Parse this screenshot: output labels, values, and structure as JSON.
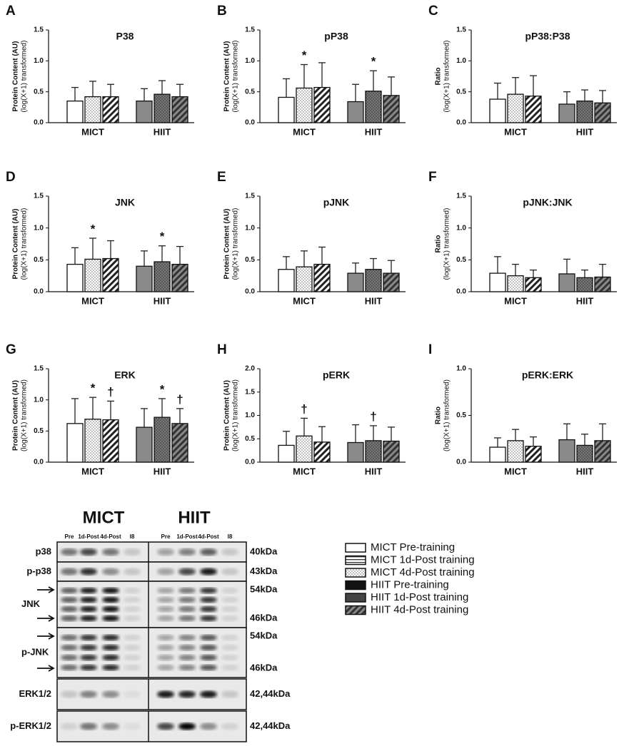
{
  "chart_data": [
    {
      "type": "bar",
      "panel": "A",
      "title": "P38",
      "ylabel": [
        "Protein Content (AU)",
        "(log(X+1) transformed)"
      ],
      "ylim": [
        0,
        1.5
      ],
      "yticks": [
        {
          "value": 0,
          "label": "0.0"
        },
        {
          "value": 0.5,
          "label": "0.5"
        },
        {
          "value": 1,
          "label": "1.0"
        },
        {
          "value": 1.5,
          "label": "1.5"
        }
      ],
      "groups": [
        {
          "name": "MICT",
          "values": [
            0.35,
            0.42,
            0.42
          ],
          "errors": [
            0.22,
            0.25,
            0.2
          ],
          "labels": [
            null,
            null,
            null
          ]
        },
        {
          "name": "HIIT",
          "values": [
            0.35,
            0.46,
            0.42
          ],
          "errors": [
            0.2,
            0.22,
            0.2
          ],
          "labels": [
            null,
            null,
            null
          ]
        }
      ]
    },
    {
      "type": "bar",
      "panel": "B",
      "title": "pP38",
      "ylabel": [
        "Protein Content (AU)",
        "(log(X+1) transformed)"
      ],
      "ylim": [
        0,
        1.5
      ],
      "yticks": [
        {
          "value": 0,
          "label": "0.0"
        },
        {
          "value": 0.5,
          "label": "0.5"
        },
        {
          "value": 1,
          "label": "1.0"
        },
        {
          "value": 1.5,
          "label": "1.5"
        }
      ],
      "groups": [
        {
          "name": "MICT",
          "values": [
            0.41,
            0.56,
            0.57
          ],
          "errors": [
            0.3,
            0.38,
            0.4
          ],
          "labels": [
            null,
            "*",
            null
          ]
        },
        {
          "name": "HIIT",
          "values": [
            0.34,
            0.51,
            0.44
          ],
          "errors": [
            0.28,
            0.33,
            0.3
          ],
          "labels": [
            null,
            "*",
            null
          ]
        }
      ]
    },
    {
      "type": "bar",
      "panel": "C",
      "title": "pP38:P38",
      "ylabel": [
        "Ratio",
        "(log(X+1) transformed)"
      ],
      "ylim": [
        0,
        1.5
      ],
      "yticks": [
        {
          "value": 0,
          "label": "0.0"
        },
        {
          "value": 0.5,
          "label": "0.5"
        },
        {
          "value": 1,
          "label": "1.0"
        },
        {
          "value": 1.5,
          "label": "1.5"
        }
      ],
      "groups": [
        {
          "name": "MICT",
          "values": [
            0.38,
            0.46,
            0.43
          ],
          "errors": [
            0.26,
            0.27,
            0.33
          ],
          "labels": [
            null,
            null,
            null
          ]
        },
        {
          "name": "HIIT",
          "values": [
            0.3,
            0.35,
            0.32
          ],
          "errors": [
            0.2,
            0.18,
            0.2
          ],
          "labels": [
            null,
            null,
            null
          ]
        }
      ]
    },
    {
      "type": "bar",
      "panel": "D",
      "title": "JNK",
      "ylabel": [
        "Protein Content (AU)",
        "(log(X+1) transformed)"
      ],
      "ylim": [
        0,
        1.5
      ],
      "yticks": [
        {
          "value": 0,
          "label": "0.0"
        },
        {
          "value": 0.5,
          "label": "0.5"
        },
        {
          "value": 1,
          "label": "1.0"
        },
        {
          "value": 1.5,
          "label": "1.5"
        }
      ],
      "groups": [
        {
          "name": "MICT",
          "values": [
            0.43,
            0.51,
            0.52
          ],
          "errors": [
            0.26,
            0.33,
            0.28
          ],
          "labels": [
            null,
            "*",
            null
          ]
        },
        {
          "name": "HIIT",
          "values": [
            0.4,
            0.47,
            0.43
          ],
          "errors": [
            0.24,
            0.25,
            0.28
          ],
          "labels": [
            null,
            "*",
            null
          ]
        }
      ]
    },
    {
      "type": "bar",
      "panel": "E",
      "title": "pJNK",
      "ylabel": [
        "Protein Content (AU)",
        "(log(X+1) transformed)"
      ],
      "ylim": [
        0,
        1.5
      ],
      "yticks": [
        {
          "value": 0,
          "label": "0.0"
        },
        {
          "value": 0.5,
          "label": "0.5"
        },
        {
          "value": 1,
          "label": "1.0"
        },
        {
          "value": 1.5,
          "label": "1.5"
        }
      ],
      "groups": [
        {
          "name": "MICT",
          "values": [
            0.35,
            0.39,
            0.43
          ],
          "errors": [
            0.2,
            0.25,
            0.27
          ],
          "labels": [
            null,
            null,
            null
          ]
        },
        {
          "name": "HIIT",
          "values": [
            0.29,
            0.35,
            0.29
          ],
          "errors": [
            0.16,
            0.17,
            0.2
          ],
          "labels": [
            null,
            null,
            null
          ]
        }
      ]
    },
    {
      "type": "bar",
      "panel": "F",
      "title": "pJNK:JNK",
      "ylabel": [
        "Ratio",
        "(log(X+1) transformed)"
      ],
      "ylim": [
        0,
        1.5
      ],
      "yticks": [
        {
          "value": 0,
          "label": "0.0"
        },
        {
          "value": 0.5,
          "label": "0.5"
        },
        {
          "value": 1,
          "label": "1.0"
        },
        {
          "value": 1.5,
          "label": "1.5"
        }
      ],
      "groups": [
        {
          "name": "MICT",
          "values": [
            0.29,
            0.25,
            0.22
          ],
          "errors": [
            0.26,
            0.18,
            0.12
          ],
          "labels": [
            null,
            null,
            null
          ]
        },
        {
          "name": "HIIT",
          "values": [
            0.28,
            0.22,
            0.23
          ],
          "errors": [
            0.23,
            0.12,
            0.2
          ],
          "labels": [
            null,
            null,
            null
          ]
        }
      ]
    },
    {
      "type": "bar",
      "panel": "G",
      "title": "ERK",
      "ylabel": [
        "Protein Content (AU)",
        "(log(X+1) transformed)"
      ],
      "ylim": [
        0,
        1.5
      ],
      "yticks": [
        {
          "value": 0,
          "label": "0.0"
        },
        {
          "value": 0.5,
          "label": "0.5"
        },
        {
          "value": 1,
          "label": "1.0"
        },
        {
          "value": 1.5,
          "label": "1.5"
        }
      ],
      "groups": [
        {
          "name": "MICT",
          "values": [
            0.62,
            0.69,
            0.68
          ],
          "errors": [
            0.4,
            0.35,
            0.3
          ],
          "labels": [
            null,
            "*",
            "†"
          ]
        },
        {
          "name": "HIIT",
          "values": [
            0.56,
            0.72,
            0.62
          ],
          "errors": [
            0.3,
            0.3,
            0.24
          ],
          "labels": [
            null,
            "*",
            "†"
          ]
        }
      ]
    },
    {
      "type": "bar",
      "panel": "H",
      "title": "pERK",
      "ylabel": [
        "Protein Content (AU)",
        "(log(X+1) transformed)"
      ],
      "ylim": [
        0,
        2
      ],
      "yticks": [
        {
          "value": 0,
          "label": "0.0"
        },
        {
          "value": 0.5,
          "label": "0.5"
        },
        {
          "value": 1,
          "label": "1.0"
        },
        {
          "value": 1.5,
          "label": "1.5"
        },
        {
          "value": 2,
          "label": "2.0"
        }
      ],
      "groups": [
        {
          "name": "MICT",
          "values": [
            0.36,
            0.56,
            0.43
          ],
          "errors": [
            0.3,
            0.38,
            0.33
          ],
          "labels": [
            null,
            "†",
            null
          ]
        },
        {
          "name": "HIIT",
          "values": [
            0.42,
            0.46,
            0.45
          ],
          "errors": [
            0.38,
            0.32,
            0.3
          ],
          "labels": [
            null,
            "†",
            null
          ]
        }
      ]
    },
    {
      "type": "bar",
      "panel": "I",
      "title": "pERK:ERK",
      "ylabel": [
        "Ratio",
        "(log(X+1) transformed)"
      ],
      "ylim": [
        0,
        1
      ],
      "yticks": [
        {
          "value": 0,
          "label": "0.0"
        },
        {
          "value": 0.5,
          "label": "0.5"
        },
        {
          "value": 1,
          "label": "1.0"
        }
      ],
      "groups": [
        {
          "name": "MICT",
          "values": [
            0.16,
            0.23,
            0.17
          ],
          "errors": [
            0.1,
            0.12,
            0.1
          ],
          "labels": [
            null,
            null,
            null
          ]
        },
        {
          "name": "HIIT",
          "values": [
            0.24,
            0.18,
            0.23
          ],
          "errors": [
            0.17,
            0.12,
            0.18
          ],
          "labels": [
            null,
            null,
            null
          ]
        }
      ]
    }
  ],
  "legend": [
    "MICT Pre-training",
    "MICT 1d-Post training",
    "MICT 4d-Post training",
    "HIIT Pre-training",
    "HIIT 1d-Post training",
    "HIIT 4d-Post training"
  ],
  "blot": {
    "groups": [
      "MICT",
      "HIIT"
    ],
    "lanes": [
      "Pre",
      "1d-Post",
      "4d-Post",
      "I8"
    ],
    "rows": [
      {
        "label": "p38",
        "sizes": [
          "40kDa"
        ]
      },
      {
        "label": "p-p38",
        "sizes": [
          "43kDa"
        ]
      },
      {
        "label": "JNK",
        "sizes": [
          "54kDa",
          "46kDa"
        ]
      },
      {
        "label": "p-JNK",
        "sizes": [
          "54kDa",
          "46kDa"
        ]
      },
      {
        "label": "ERK1/2",
        "sizes": [
          "42,44kDa"
        ]
      },
      {
        "label": "p-ERK1/2",
        "sizes": [
          "42,44kDa"
        ]
      }
    ]
  }
}
